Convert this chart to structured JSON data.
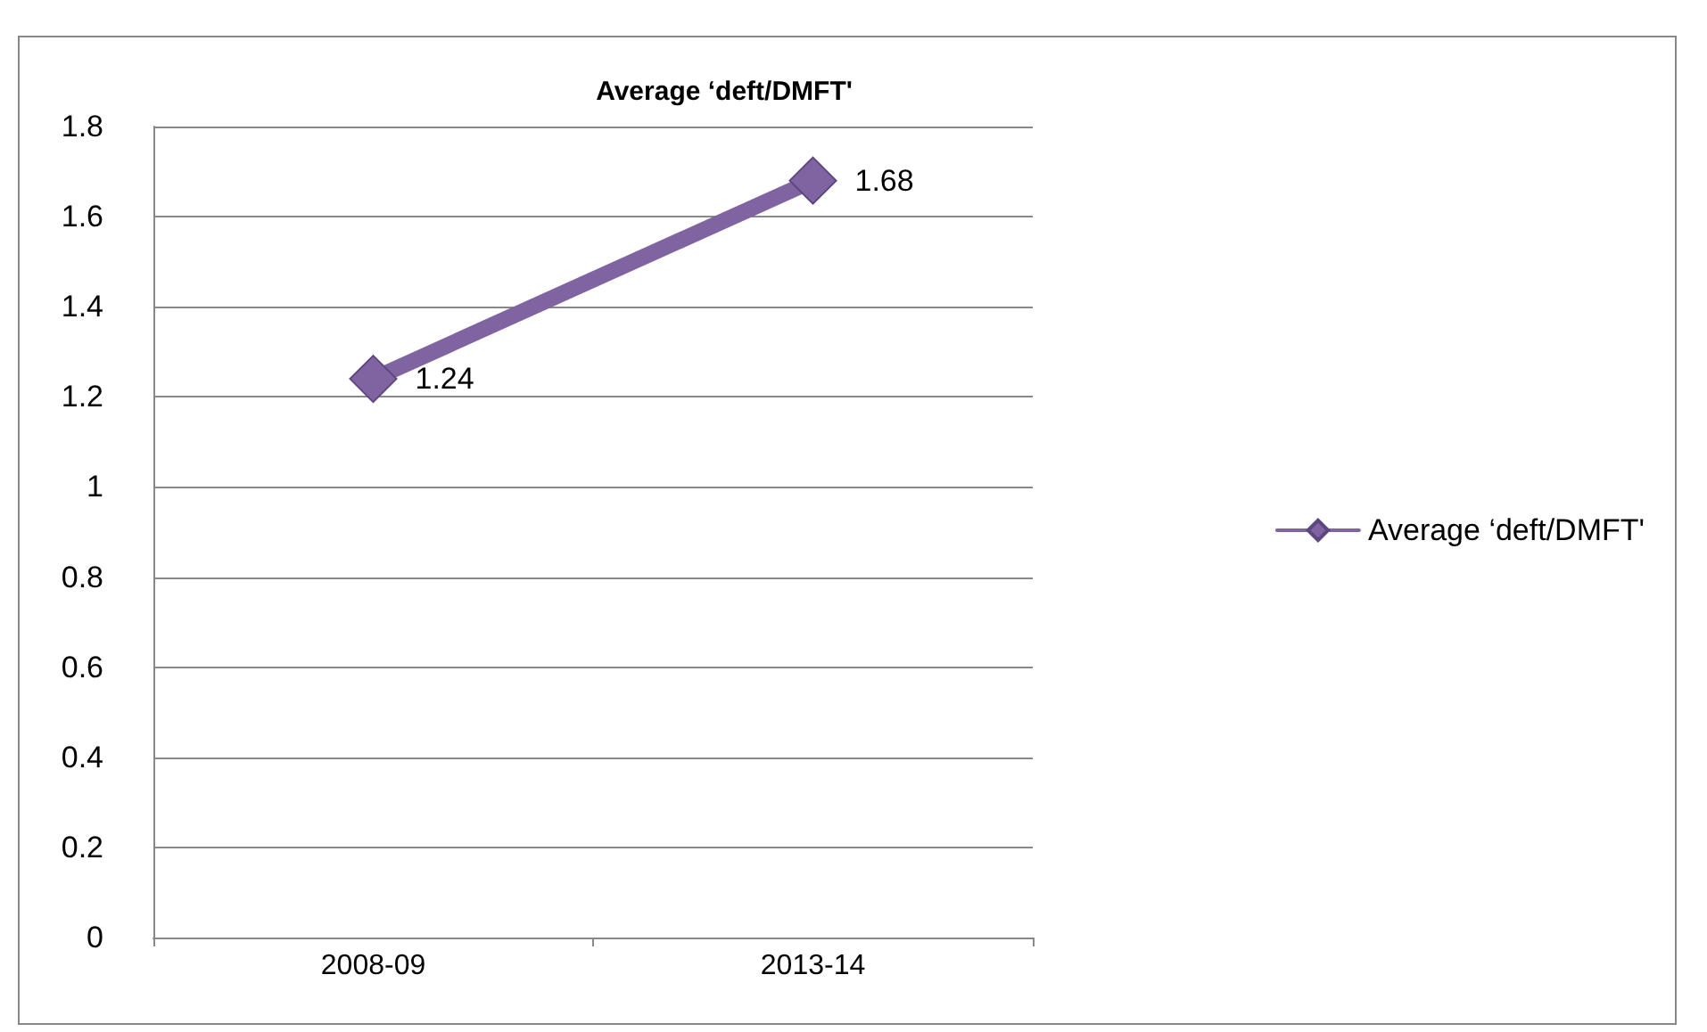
{
  "chart_data": {
    "type": "line",
    "title": "Average ‘deft/DMFT'",
    "categories": [
      "2008-09",
      "2013-14"
    ],
    "series": [
      {
        "name": "Average ‘deft/DMFT'",
        "color": "#8064a2",
        "values": [
          1.24,
          1.68
        ]
      }
    ],
    "ylim": [
      0,
      1.8
    ],
    "yticks": [
      0,
      0.2,
      0.4,
      0.6,
      0.8,
      1,
      1.2,
      1.4,
      1.6,
      1.8
    ],
    "grid": "y",
    "legend": "right",
    "marker": "diamond",
    "data_labels": true
  }
}
